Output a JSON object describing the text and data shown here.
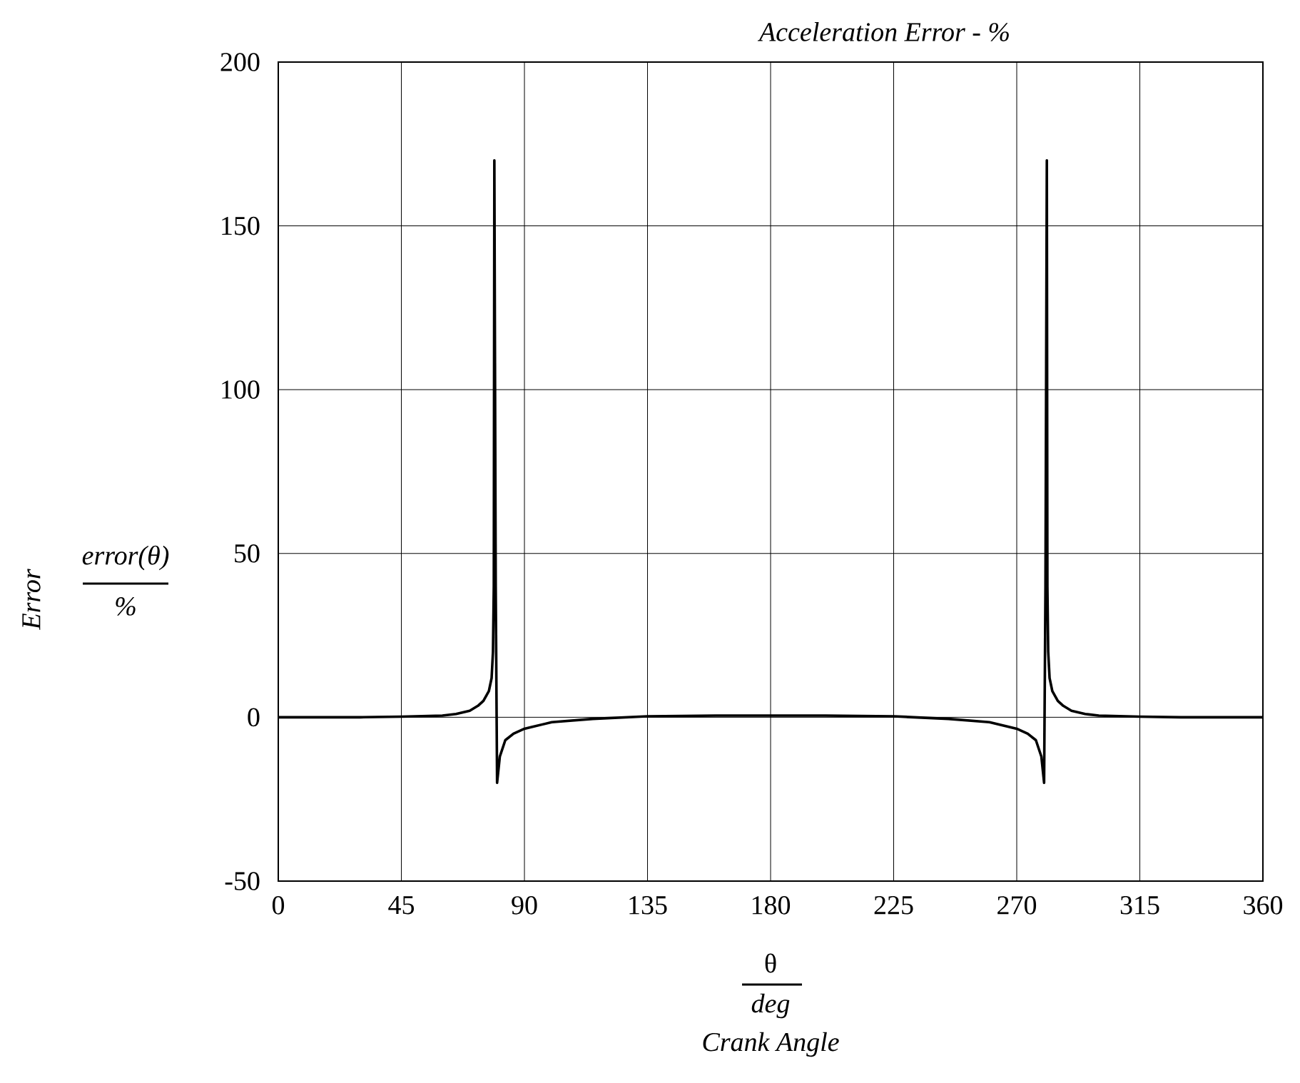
{
  "chart_data": {
    "type": "line",
    "title": "Acceleration Error - %",
    "xlabel": "Crank Angle",
    "annotations": [
      "Error",
      "error(θ)",
      "%",
      "θ",
      "deg"
    ],
    "series": [
      {
        "color": "#000000",
        "x": [
          0,
          30,
          45,
          60,
          65,
          70,
          73,
          75,
          77,
          78,
          78.5,
          78.8,
          79,
          79.5,
          80,
          81,
          83,
          86,
          90,
          100,
          115,
          135,
          160,
          180,
          200,
          225,
          245,
          260,
          270,
          274,
          277,
          279,
          280,
          280.5,
          281,
          281.2,
          281.5,
          282,
          283,
          285,
          287,
          290,
          295,
          300,
          315,
          330,
          360
        ],
        "values": [
          0,
          0,
          0.2,
          0.5,
          1,
          2,
          3.5,
          5,
          8,
          12,
          20,
          40,
          170,
          40,
          -20,
          -12,
          -7,
          -5,
          -3.5,
          -1.5,
          -0.5,
          0.3,
          0.5,
          0.5,
          0.5,
          0.3,
          -0.5,
          -1.5,
          -3.5,
          -5,
          -7,
          -12,
          -20,
          40,
          170,
          40,
          20,
          12,
          8,
          5,
          3.5,
          2,
          1,
          0.5,
          0.2,
          0,
          0
        ]
      }
    ],
    "xlim": [
      0,
      360
    ],
    "ylim": [
      -50,
      200
    ],
    "xticks": [
      0,
      45,
      90,
      135,
      180,
      225,
      270,
      315,
      360
    ],
    "yticks": [
      -50,
      0,
      50,
      100,
      150,
      200
    ],
    "grid": true
  }
}
